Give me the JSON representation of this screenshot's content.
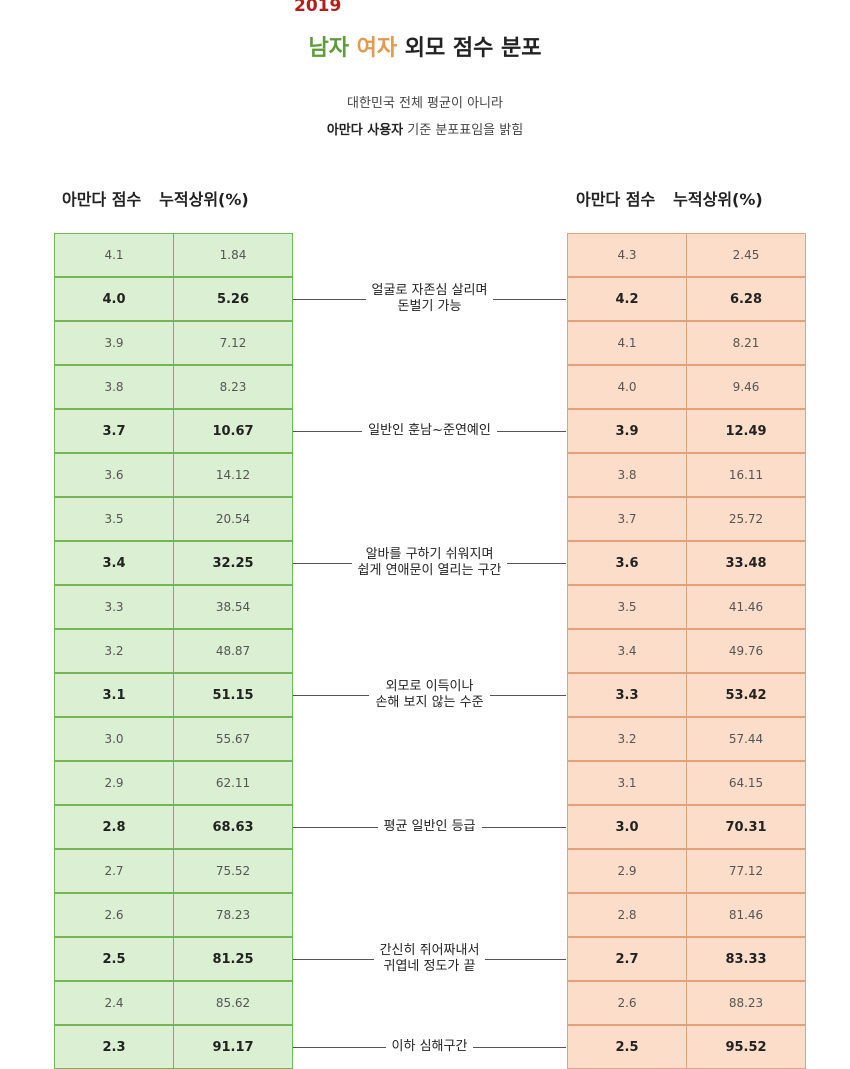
{
  "header": {
    "year": "2019",
    "title_male": "남자",
    "title_female": "여자",
    "title_rest": "외모 점수 분포",
    "subtitle_line1": "대한민국 전체 평균이 아니라",
    "subtitle_line2_bold": "아만다 사용자",
    "subtitle_line2_rest": "기준 분포표임을 밝힘"
  },
  "columns": {
    "score_label": "아만다 점수",
    "cumulative_label": "누적상위(%)"
  },
  "chart_data": {
    "type": "table",
    "male": {
      "scores": [
        "4.1",
        "4.0",
        "3.9",
        "3.8",
        "3.7",
        "3.6",
        "3.5",
        "3.4",
        "3.3",
        "3.2",
        "3.1",
        "3.0",
        "2.9",
        "2.8",
        "2.7",
        "2.6",
        "2.5",
        "2.4",
        "2.3"
      ],
      "cumulative_top_percent": [
        "1.84",
        "5.26",
        "7.12",
        "8.23",
        "10.67",
        "14.12",
        "20.54",
        "32.25",
        "38.54",
        "48.87",
        "51.15",
        "55.67",
        "62.11",
        "68.63",
        "75.52",
        "78.23",
        "81.25",
        "85.62",
        "91.17"
      ]
    },
    "female": {
      "scores": [
        "4.3",
        "4.2",
        "4.1",
        "4.0",
        "3.9",
        "3.8",
        "3.7",
        "3.6",
        "3.5",
        "3.4",
        "3.3",
        "3.2",
        "3.1",
        "3.0",
        "2.9",
        "2.8",
        "2.7",
        "2.6",
        "2.5"
      ],
      "cumulative_top_percent": [
        "2.45",
        "6.28",
        "8.21",
        "9.46",
        "12.49",
        "16.11",
        "25.72",
        "33.48",
        "41.46",
        "49.76",
        "53.42",
        "57.44",
        "64.15",
        "70.31",
        "77.12",
        "81.46",
        "83.33",
        "88.23",
        "95.52"
      ]
    },
    "bold_rows": [
      1,
      4,
      7,
      10,
      13,
      16,
      18
    ],
    "annotations": [
      {
        "row": 1,
        "lines": [
          "얼굴로 자존심 살리며",
          "돈벌기 가능"
        ]
      },
      {
        "row": 4,
        "lines": [
          "일반인 훈남~준연예인"
        ]
      },
      {
        "row": 7,
        "lines": [
          "알바를 구하기 쉬워지며",
          "쉽게 연애문이 열리는 구간"
        ]
      },
      {
        "row": 10,
        "lines": [
          "외모로 이득이나",
          "손해 보지 않는 수준"
        ]
      },
      {
        "row": 13,
        "lines": [
          "평균 일반인 등급"
        ]
      },
      {
        "row": 16,
        "lines": [
          "간신히 쥐어짜내서",
          "귀엽네 정도가 끝"
        ]
      },
      {
        "row": 18,
        "lines": [
          "이하 심해구간"
        ]
      }
    ]
  }
}
